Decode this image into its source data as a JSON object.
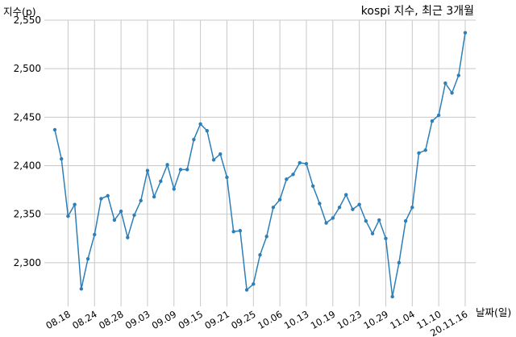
{
  "chart_data": {
    "type": "line",
    "title": "kospi 지수, 최근 3개월",
    "xlabel": "날짜(일)",
    "ylabel": "지수(p)",
    "ylim": [
      2255,
      2550
    ],
    "yticks": [
      2300,
      2350,
      2400,
      2450,
      2500,
      2550
    ],
    "ytick_labels": [
      "2,300",
      "2,350",
      "2,400",
      "2,450",
      "2,500",
      "2,550"
    ],
    "xtick_labels": [
      "08.18",
      "08.24",
      "08.28",
      "09.03",
      "09.09",
      "09.15",
      "09.21",
      "09.25",
      "10.06",
      "10.13",
      "10.19",
      "10.23",
      "10.29",
      "11.04",
      "11.10",
      "20.11.16"
    ],
    "xtick_positions": [
      2,
      6,
      10,
      14,
      18,
      22,
      26,
      30,
      34,
      38,
      42,
      46,
      50,
      54,
      58,
      62
    ],
    "grid": true,
    "color": "#2d7fb8",
    "series": [
      {
        "name": "",
        "x": [
          0,
          1,
          2,
          3,
          4,
          5,
          6,
          7,
          8,
          9,
          10,
          11,
          12,
          13,
          14,
          15,
          16,
          17,
          18,
          19,
          20,
          21,
          22,
          23,
          24,
          25,
          26,
          27,
          28,
          29,
          30,
          31,
          32,
          33,
          34,
          35,
          36,
          37,
          38,
          39,
          40,
          41,
          42,
          43,
          44,
          45,
          46,
          47,
          48,
          49,
          50,
          51,
          52,
          53,
          54,
          55,
          56,
          57,
          58,
          59,
          60,
          61,
          62
        ],
        "values": [
          2437,
          2407,
          2348,
          2360,
          2273,
          2304,
          2329,
          2366,
          2369,
          2344,
          2353,
          2326,
          2349,
          2364,
          2395,
          2368,
          2384,
          2401,
          2376,
          2396,
          2396,
          2427,
          2443,
          2436,
          2406,
          2412,
          2388,
          2332,
          2333,
          2272,
          2278,
          2308,
          2327,
          2357,
          2365,
          2386,
          2391,
          2403,
          2402,
          2379,
          2361,
          2341,
          2346,
          2357,
          2370,
          2355,
          2360,
          2343,
          2330,
          2344,
          2325,
          2265,
          2300,
          2343,
          2357,
          2413,
          2416,
          2446,
          2452,
          2485,
          2475,
          2493,
          2537
        ]
      }
    ]
  }
}
